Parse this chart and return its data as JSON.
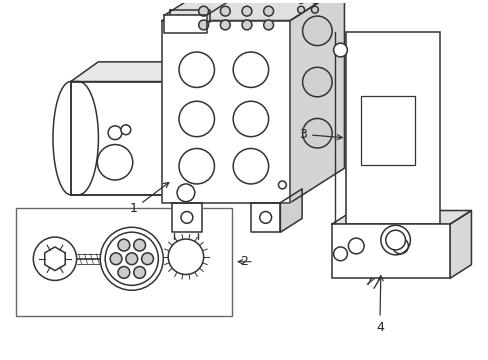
{
  "background_color": "#ffffff",
  "line_color": "#333333",
  "line_width": 1.1,
  "label_color": "#222222",
  "label_fontsize": 9,
  "fig_width": 4.89,
  "fig_height": 3.6,
  "dpi": 100
}
